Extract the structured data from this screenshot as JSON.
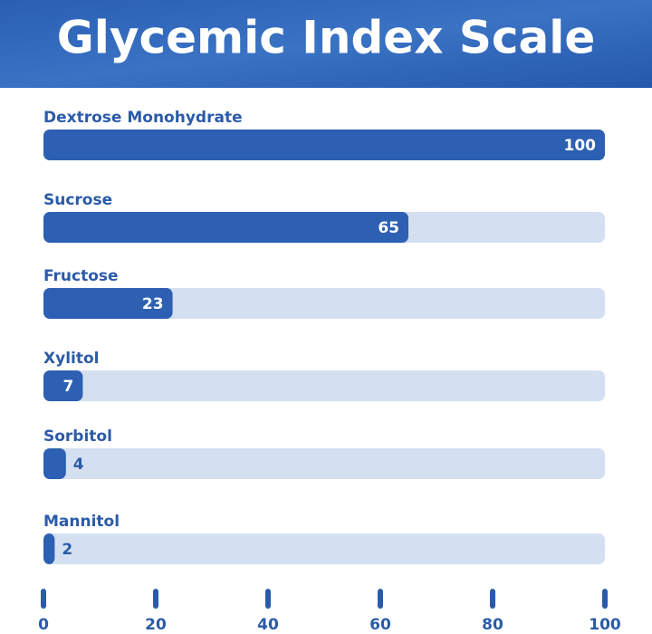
{
  "chart_data": {
    "type": "bar",
    "orientation": "horizontal",
    "title": "Glycemic Index Scale",
    "categories": [
      "Dextrose Monohydrate",
      "Sucrose",
      "Fructose",
      "Xylitol",
      "Sorbitol",
      "Mannitol"
    ],
    "values": [
      100,
      65,
      23,
      7,
      4,
      2
    ],
    "color": "#2d60b2",
    "xlim": [
      0,
      100
    ],
    "xticks": [
      0,
      20,
      40,
      60,
      80,
      100
    ]
  }
}
